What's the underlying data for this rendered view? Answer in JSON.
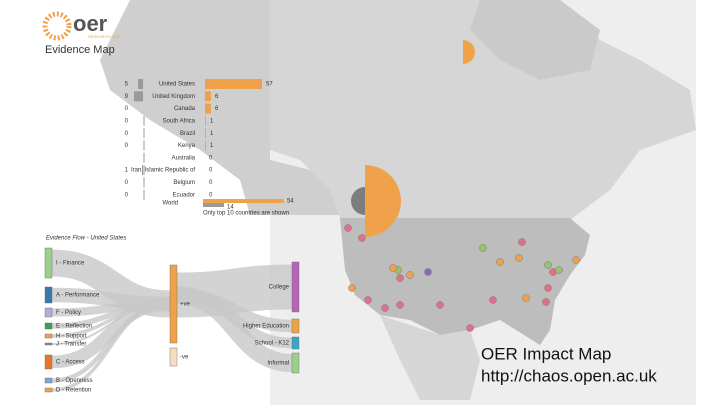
{
  "header": {
    "logo": "oer",
    "logo_sub": "RESEARCH HUB",
    "title": "Evidence Map"
  },
  "country_table": {
    "rows": [
      {
        "country": "United States",
        "left": 5,
        "right": 57
      },
      {
        "country": "United Kingdom",
        "left": 9,
        "right": 6
      },
      {
        "country": "Canada",
        "left": 0,
        "right": 6
      },
      {
        "country": "South Africa",
        "left": 0,
        "right": 1
      },
      {
        "country": "Brazil",
        "left": 0,
        "right": 1
      },
      {
        "country": "Kenya",
        "left": 0,
        "right": 1
      },
      {
        "country": "Australia",
        "right": 0
      },
      {
        "country": "Iran, Islamic Republic of",
        "left": 1,
        "right": 0
      },
      {
        "country": "Belgium",
        "left": 0,
        "right": 0
      },
      {
        "country": "Ecuador",
        "left": 0,
        "right": 0
      }
    ],
    "world": {
      "label": "World",
      "right": 54,
      "left": 14
    },
    "footnote": "Only top 10 countries are shown"
  },
  "flow": {
    "title": "Evidence Flow - United States",
    "sources": [
      "I - Finance",
      "A - Performance",
      "F - Policy",
      "E - Reflection",
      "H - Support",
      "J - Transfer",
      "C - Access",
      "B - Openness",
      "D - Retention"
    ],
    "middle": [
      "+ve",
      "-ve"
    ],
    "targets": [
      "College",
      "Higher Education",
      "School - K12",
      "Informal"
    ]
  },
  "caption": {
    "line1": "OER Impact Map",
    "line2": "http://chaos.open.ac.uk"
  }
}
